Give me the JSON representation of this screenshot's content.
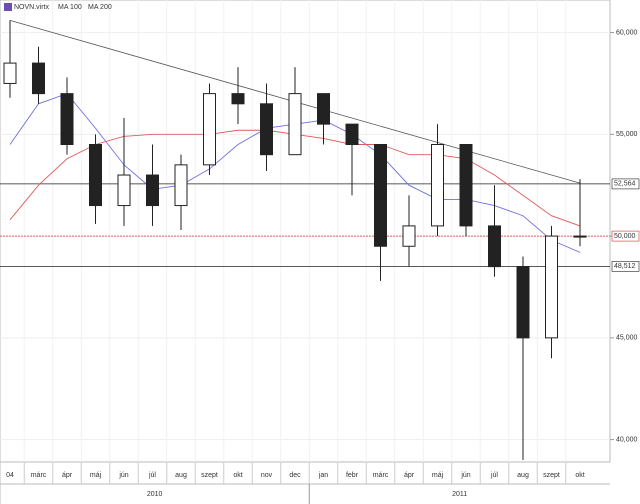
{
  "chart_data": {
    "type": "candlestick",
    "categories": [
      "04",
      "márc",
      "ápr",
      "máj",
      "jún",
      "júl",
      "aug",
      "szept",
      "okt",
      "nov",
      "dec",
      "jan",
      "febr",
      "márc",
      "ápr",
      "máj",
      "jún",
      "júl",
      "aug",
      "szept",
      "okt"
    ],
    "years": [
      "2010",
      "2011"
    ],
    "price": {
      "name": "NOVN.virtx",
      "color": "#222222",
      "open": [
        57.5,
        58.5,
        57.0,
        54.5,
        51.5,
        53.0,
        51.5,
        53.5,
        57.0,
        56.5,
        54.0,
        57.0,
        55.5,
        54.5,
        49.5,
        50.5,
        54.5,
        50.5,
        48.5,
        45.0,
        50.0
      ],
      "high": [
        60.6,
        59.3,
        57.8,
        55.0,
        55.8,
        54.5,
        54.0,
        57.5,
        58.3,
        57.5,
        58.3,
        57.0,
        55.5,
        54.5,
        52.0,
        55.5,
        54.5,
        52.5,
        49.0,
        50.5,
        52.8
      ],
      "low": [
        56.8,
        56.5,
        54.0,
        50.6,
        50.5,
        50.5,
        50.3,
        53.0,
        55.5,
        53.2,
        54.0,
        54.5,
        52.0,
        47.8,
        48.5,
        50.0,
        50.0,
        48.0,
        39.0,
        44.0,
        49.5
      ],
      "close": [
        58.5,
        57.0,
        54.5,
        51.5,
        53.0,
        51.5,
        53.5,
        57.0,
        56.5,
        54.0,
        57.0,
        55.5,
        54.5,
        49.5,
        50.5,
        54.5,
        50.5,
        48.5,
        45.0,
        50.0,
        50.0
      ]
    },
    "series": [
      {
        "name": "MA 100",
        "color": "#6f6fe0",
        "values": [
          54.5,
          56.5,
          57.0,
          55.3,
          53.5,
          52.3,
          52.5,
          53.3,
          54.5,
          55.3,
          55.5,
          55.7,
          55.0,
          54.0,
          52.5,
          51.8,
          51.8,
          51.5,
          51.0,
          49.8,
          49.2
        ]
      },
      {
        "name": "MA 200",
        "color": "#e05a5a",
        "values": [
          50.8,
          52.5,
          53.8,
          54.5,
          54.9,
          55.0,
          55.0,
          55.0,
          55.2,
          55.2,
          55.0,
          54.8,
          54.5,
          54.5,
          54.0,
          54.0,
          53.8,
          53.0,
          52.0,
          51.0,
          50.5
        ]
      }
    ],
    "trendline": {
      "color": "#555555",
      "values": [
        60.6,
        52.6
      ]
    },
    "levels": [
      {
        "value": 52.564,
        "label": "52,564",
        "color": "#222222"
      },
      {
        "value": 50.0,
        "label": "50,000",
        "color": "#d03030"
      },
      {
        "value": 48.512,
        "label": "48,512",
        "color": "#222222"
      }
    ],
    "ylim": [
      38.9,
      61.6
    ],
    "yticks": [
      {
        "value": 40,
        "label": "40,000"
      },
      {
        "value": 45,
        "label": "45,000"
      },
      {
        "value": 50,
        "label": "50,000"
      },
      {
        "value": 55,
        "label": "55,000"
      },
      {
        "value": 60,
        "label": "60,000"
      }
    ],
    "grid": true
  }
}
